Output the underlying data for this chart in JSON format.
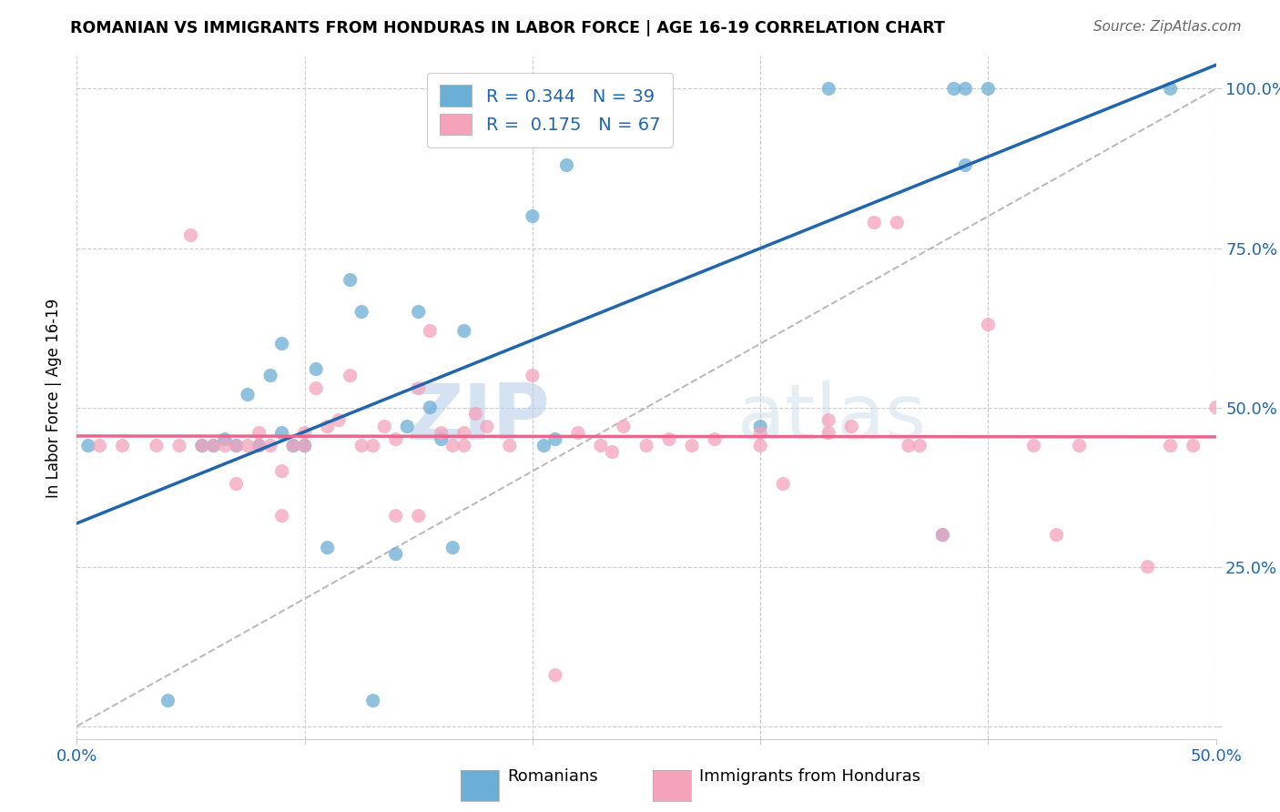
{
  "title": "ROMANIAN VS IMMIGRANTS FROM HONDURAS IN LABOR FORCE | AGE 16-19 CORRELATION CHART",
  "source": "Source: ZipAtlas.com",
  "ylabel_text": "In Labor Force | Age 16-19",
  "xlim": [
    0.0,
    0.5
  ],
  "ylim": [
    -0.02,
    1.05
  ],
  "romanian_color": "#6baed6",
  "honduras_color": "#f4a3bb",
  "regression_romanian_color": "#2166ac",
  "regression_honduras_color": "#e8688a",
  "diagonal_color": "#bbbbbb",
  "legend_R_romanian": "0.344",
  "legend_N_romanian": "39",
  "legend_R_honduras": "0.175",
  "legend_N_honduras": "67",
  "legend_label_romanian": "Romanians",
  "legend_label_honduras": "Immigrants from Honduras",
  "watermark_zip": "ZIP",
  "watermark_atlas": "atlas",
  "romanian_x": [
    0.005,
    0.04,
    0.055,
    0.06,
    0.065,
    0.07,
    0.075,
    0.08,
    0.085,
    0.09,
    0.09,
    0.095,
    0.1,
    0.105,
    0.11,
    0.12,
    0.125,
    0.13,
    0.14,
    0.145,
    0.15,
    0.155,
    0.16,
    0.165,
    0.17,
    0.2,
    0.205,
    0.21,
    0.215,
    0.22,
    0.25,
    0.3,
    0.33,
    0.38,
    0.385,
    0.39,
    0.39,
    0.4,
    0.48
  ],
  "romanian_y": [
    0.44,
    0.04,
    0.44,
    0.44,
    0.45,
    0.44,
    0.52,
    0.44,
    0.55,
    0.6,
    0.46,
    0.44,
    0.44,
    0.56,
    0.28,
    0.7,
    0.65,
    0.04,
    0.27,
    0.47,
    0.65,
    0.5,
    0.45,
    0.28,
    0.62,
    0.8,
    0.44,
    0.45,
    0.88,
    1.0,
    1.0,
    0.47,
    1.0,
    0.3,
    1.0,
    1.0,
    0.88,
    1.0,
    1.0
  ],
  "honduras_x": [
    0.01,
    0.02,
    0.035,
    0.045,
    0.05,
    0.055,
    0.06,
    0.065,
    0.07,
    0.07,
    0.075,
    0.08,
    0.08,
    0.085,
    0.09,
    0.09,
    0.095,
    0.1,
    0.1,
    0.105,
    0.11,
    0.115,
    0.12,
    0.125,
    0.13,
    0.135,
    0.14,
    0.14,
    0.15,
    0.15,
    0.155,
    0.16,
    0.165,
    0.17,
    0.17,
    0.175,
    0.18,
    0.19,
    0.2,
    0.21,
    0.22,
    0.23,
    0.235,
    0.24,
    0.25,
    0.26,
    0.27,
    0.28,
    0.3,
    0.3,
    0.31,
    0.33,
    0.33,
    0.34,
    0.35,
    0.36,
    0.365,
    0.37,
    0.38,
    0.4,
    0.42,
    0.43,
    0.44,
    0.47,
    0.48,
    0.49,
    0.5
  ],
  "honduras_y": [
    0.44,
    0.44,
    0.44,
    0.44,
    0.77,
    0.44,
    0.44,
    0.44,
    0.38,
    0.44,
    0.44,
    0.44,
    0.46,
    0.44,
    0.33,
    0.4,
    0.44,
    0.44,
    0.46,
    0.53,
    0.47,
    0.48,
    0.55,
    0.44,
    0.44,
    0.47,
    0.33,
    0.45,
    0.33,
    0.53,
    0.62,
    0.46,
    0.44,
    0.44,
    0.46,
    0.49,
    0.47,
    0.44,
    0.55,
    0.08,
    0.46,
    0.44,
    0.43,
    0.47,
    0.44,
    0.45,
    0.44,
    0.45,
    0.44,
    0.46,
    0.38,
    0.46,
    0.48,
    0.47,
    0.79,
    0.79,
    0.44,
    0.44,
    0.3,
    0.63,
    0.44,
    0.3,
    0.44,
    0.25,
    0.44,
    0.44,
    0.5
  ]
}
